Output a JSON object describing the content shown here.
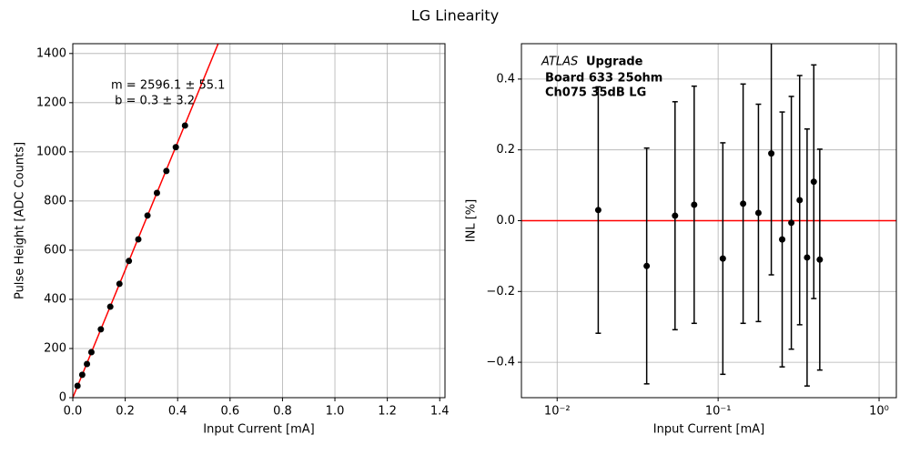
{
  "title": "LG Linearity",
  "chart_data": [
    {
      "type": "scatter",
      "xlabel": "Input Current [mA]",
      "ylabel": "Pulse Height [ADC Counts]",
      "x": [
        0.018,
        0.036,
        0.054,
        0.071,
        0.107,
        0.143,
        0.178,
        0.214,
        0.25,
        0.285,
        0.321,
        0.357,
        0.393,
        0.428
      ],
      "values": [
        48,
        93,
        137,
        185,
        278,
        370,
        463,
        556,
        644,
        741,
        833,
        922,
        1019,
        1107
      ],
      "color": "#000000",
      "fit_line": {
        "slope": 2596.1,
        "intercept": 0.3,
        "color": "#ff0000"
      },
      "annotation": [
        "m = 2596.1 ± 55.1",
        " b = 0.3 ± 3.2"
      ],
      "xlim": [
        0,
        1.42
      ],
      "ylim": [
        0,
        1440
      ],
      "xticks": [
        {
          "value": 0,
          "label": "0.0"
        },
        {
          "value": 0.2,
          "label": "0.2"
        },
        {
          "value": 0.4,
          "label": "0.4"
        },
        {
          "value": 0.6,
          "label": "0.6"
        },
        {
          "value": 0.8,
          "label": "0.8"
        },
        {
          "value": 1.0,
          "label": "1.0"
        },
        {
          "value": 1.2,
          "label": "1.2"
        },
        {
          "value": 1.4,
          "label": "1.4"
        }
      ],
      "yticks": [
        0,
        200,
        400,
        600,
        800,
        1000,
        1200,
        1400
      ],
      "grid": true,
      "xscale": "linear"
    },
    {
      "type": "errorbar",
      "xlabel": "Input Current [mA]",
      "ylabel": "INL [%]",
      "x": [
        0.018,
        0.036,
        0.054,
        0.071,
        0.107,
        0.143,
        0.178,
        0.214,
        0.25,
        0.285,
        0.321,
        0.357,
        0.393,
        0.428
      ],
      "values": [
        0.03,
        -0.128,
        0.014,
        0.045,
        -0.107,
        0.048,
        0.022,
        0.19,
        -0.053,
        -0.006,
        0.058,
        -0.104,
        0.11,
        -0.11
      ],
      "errors": [
        0.348,
        0.333,
        0.322,
        0.335,
        0.327,
        0.338,
        0.307,
        0.343,
        0.36,
        0.357,
        0.352,
        0.363,
        0.33,
        0.312
      ],
      "color": "#000000",
      "reference_line": {
        "y": 0,
        "color": "#ff0000"
      },
      "annotation": {
        "italic": "ATLAS",
        "bold": "Upgrade",
        "lines": [
          "Board 633 25ohm",
          "Ch075 35dB LG"
        ]
      },
      "xlim": [
        0.006,
        1.28
      ],
      "ylim": [
        -0.5,
        0.5
      ],
      "xticks": [
        {
          "value": 0.01,
          "label": "10⁻²"
        },
        {
          "value": 0.1,
          "label": "10⁻¹"
        },
        {
          "value": 1,
          "label": "10⁰"
        }
      ],
      "yticks": [
        {
          "value": -0.4,
          "label": "−0.4"
        },
        {
          "value": -0.2,
          "label": "−0.2"
        },
        {
          "value": 0,
          "label": "0.0"
        },
        {
          "value": 0.2,
          "label": "0.2"
        },
        {
          "value": 0.4,
          "label": "0.4"
        }
      ],
      "grid": true,
      "xscale": "log"
    }
  ]
}
